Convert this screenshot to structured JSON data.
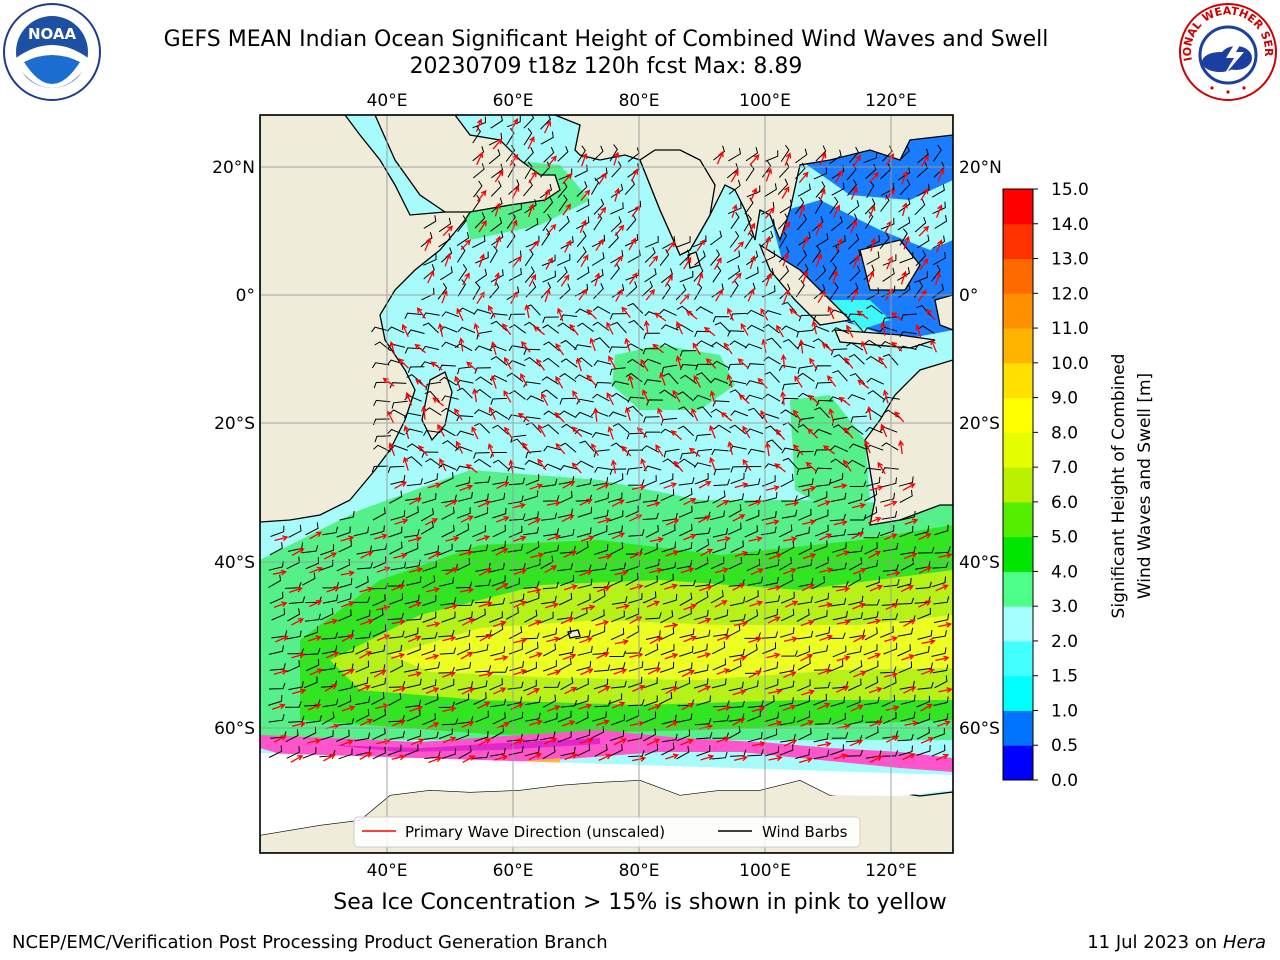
{
  "title": {
    "line1": "GEFS MEAN Indian Ocean Significant Height of Combined Wind Waves and Swell",
    "line2": "20230709 t18z 120h fcst   Max: 8.89"
  },
  "map": {
    "lon_labels": [
      "40°E",
      "60°E",
      "80°E",
      "100°E",
      "120°E"
    ],
    "lat_labels": [
      "20°N",
      "0°",
      "20°S",
      "40°S",
      "60°S"
    ],
    "lon_range": [
      20,
      130
    ],
    "lat_range": [
      -75,
      28
    ],
    "colors": {
      "land": "#efedda",
      "sea_ice": "#ff55cc",
      "wave_direction_arrow": "#ff0000",
      "wind_barb": "#000000"
    }
  },
  "legend": {
    "wave_direction": "Primary Wave Direction (unscaled)",
    "wind_barbs": "Wind Barbs"
  },
  "colorbar": {
    "label_line1": "Significant Height of Combined",
    "label_line2": "Wind Waves and Swell [m]",
    "ticks": [
      "0.0",
      "0.5",
      "1.0",
      "1.5",
      "2.0",
      "3.0",
      "4.0",
      "5.0",
      "6.0",
      "7.0",
      "8.0",
      "9.0",
      "10.0",
      "11.0",
      "12.0",
      "13.0",
      "14.0",
      "15.0"
    ],
    "colors": [
      "#0000ff",
      "#0073ff",
      "#00ffff",
      "#44ffff",
      "#a6ffff",
      "#4dff88",
      "#00e600",
      "#55ee00",
      "#bbf000",
      "#e6ff00",
      "#ffff00",
      "#ffe000",
      "#ffb400",
      "#ff9000",
      "#ff6a00",
      "#ff3200",
      "#ff0000"
    ]
  },
  "note": "Sea Ice Concentration > 15% is shown in pink to yellow",
  "footer": {
    "left": "NCEP/EMC/Verification Post Processing Product Generation Branch",
    "date": "11 Jul 2023 on ",
    "machine": "Hera"
  },
  "logos": {
    "noaa_text": "NOAA",
    "nws_text": "NATIONAL WEATHER SERVICE"
  }
}
